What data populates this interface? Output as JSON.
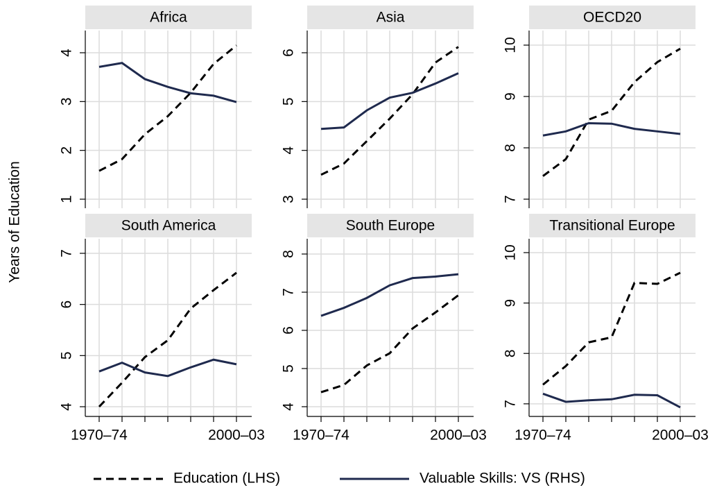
{
  "ylabel": "Years of Education",
  "x": [
    "1970–74",
    null,
    null,
    null,
    null,
    null,
    "2000–03"
  ],
  "legend": [
    {
      "name": "Education (LHS)",
      "color": "#000000",
      "dash": true
    },
    {
      "name": "Valuable Skills: VS (RHS)",
      "color": "#1f2a4e",
      "dash": false
    }
  ],
  "chart_data": [
    {
      "type": "line",
      "title": "Africa",
      "ylim": [
        0.815,
        4.455
      ],
      "yticks": [
        1,
        2,
        3,
        4
      ],
      "series": [
        {
          "values": [
            1.58,
            1.82,
            2.33,
            2.7,
            3.18,
            3.77,
            4.15
          ]
        },
        {
          "values": [
            3.71,
            3.79,
            3.46,
            3.3,
            3.17,
            3.12,
            2.99
          ]
        }
      ]
    },
    {
      "type": "line",
      "title": "Asia",
      "ylim": [
        2.815,
        6.455
      ],
      "yticks": [
        3,
        4,
        5,
        6
      ],
      "series": [
        {
          "values": [
            3.5,
            3.73,
            4.19,
            4.65,
            5.15,
            5.8,
            6.12
          ]
        },
        {
          "values": [
            4.44,
            4.47,
            4.82,
            5.08,
            5.18,
            5.37,
            5.58
          ]
        }
      ]
    },
    {
      "type": "line",
      "title": "OECD20",
      "ylim": [
        6.824,
        10.284
      ],
      "yticks": [
        7,
        8,
        9,
        10
      ],
      "series": [
        {
          "values": [
            7.45,
            7.78,
            8.55,
            8.72,
            9.28,
            9.67,
            9.93
          ]
        },
        {
          "values": [
            8.24,
            8.32,
            8.48,
            8.47,
            8.37,
            8.32,
            8.27
          ]
        }
      ]
    },
    {
      "type": "line",
      "title": "South America",
      "ylim": [
        3.81,
        7.285
      ],
      "yticks": [
        4,
        5,
        6,
        7
      ],
      "series": [
        {
          "values": [
            4.0,
            4.47,
            4.97,
            5.3,
            5.92,
            6.28,
            6.62
          ]
        },
        {
          "values": [
            4.69,
            4.86,
            4.67,
            4.6,
            4.77,
            4.92,
            4.83
          ]
        }
      ]
    },
    {
      "type": "line",
      "title": "South Europe",
      "ylim": [
        3.745,
        8.4
      ],
      "yticks": [
        4,
        5,
        6,
        7,
        8
      ],
      "series": [
        {
          "values": [
            4.38,
            4.57,
            5.08,
            5.4,
            6.05,
            6.47,
            6.92
          ]
        },
        {
          "values": [
            6.38,
            6.59,
            6.85,
            7.18,
            7.37,
            7.41,
            7.47
          ]
        }
      ]
    },
    {
      "type": "line",
      "title": "Transitional Europe",
      "ylim": [
        6.75,
        10.275
      ],
      "yticks": [
        7,
        8,
        9,
        10
      ],
      "series": [
        {
          "values": [
            7.38,
            7.75,
            8.22,
            8.32,
            9.4,
            9.38,
            9.6
          ]
        },
        {
          "values": [
            7.2,
            7.04,
            7.07,
            7.09,
            7.18,
            7.17,
            6.93
          ]
        }
      ]
    }
  ]
}
